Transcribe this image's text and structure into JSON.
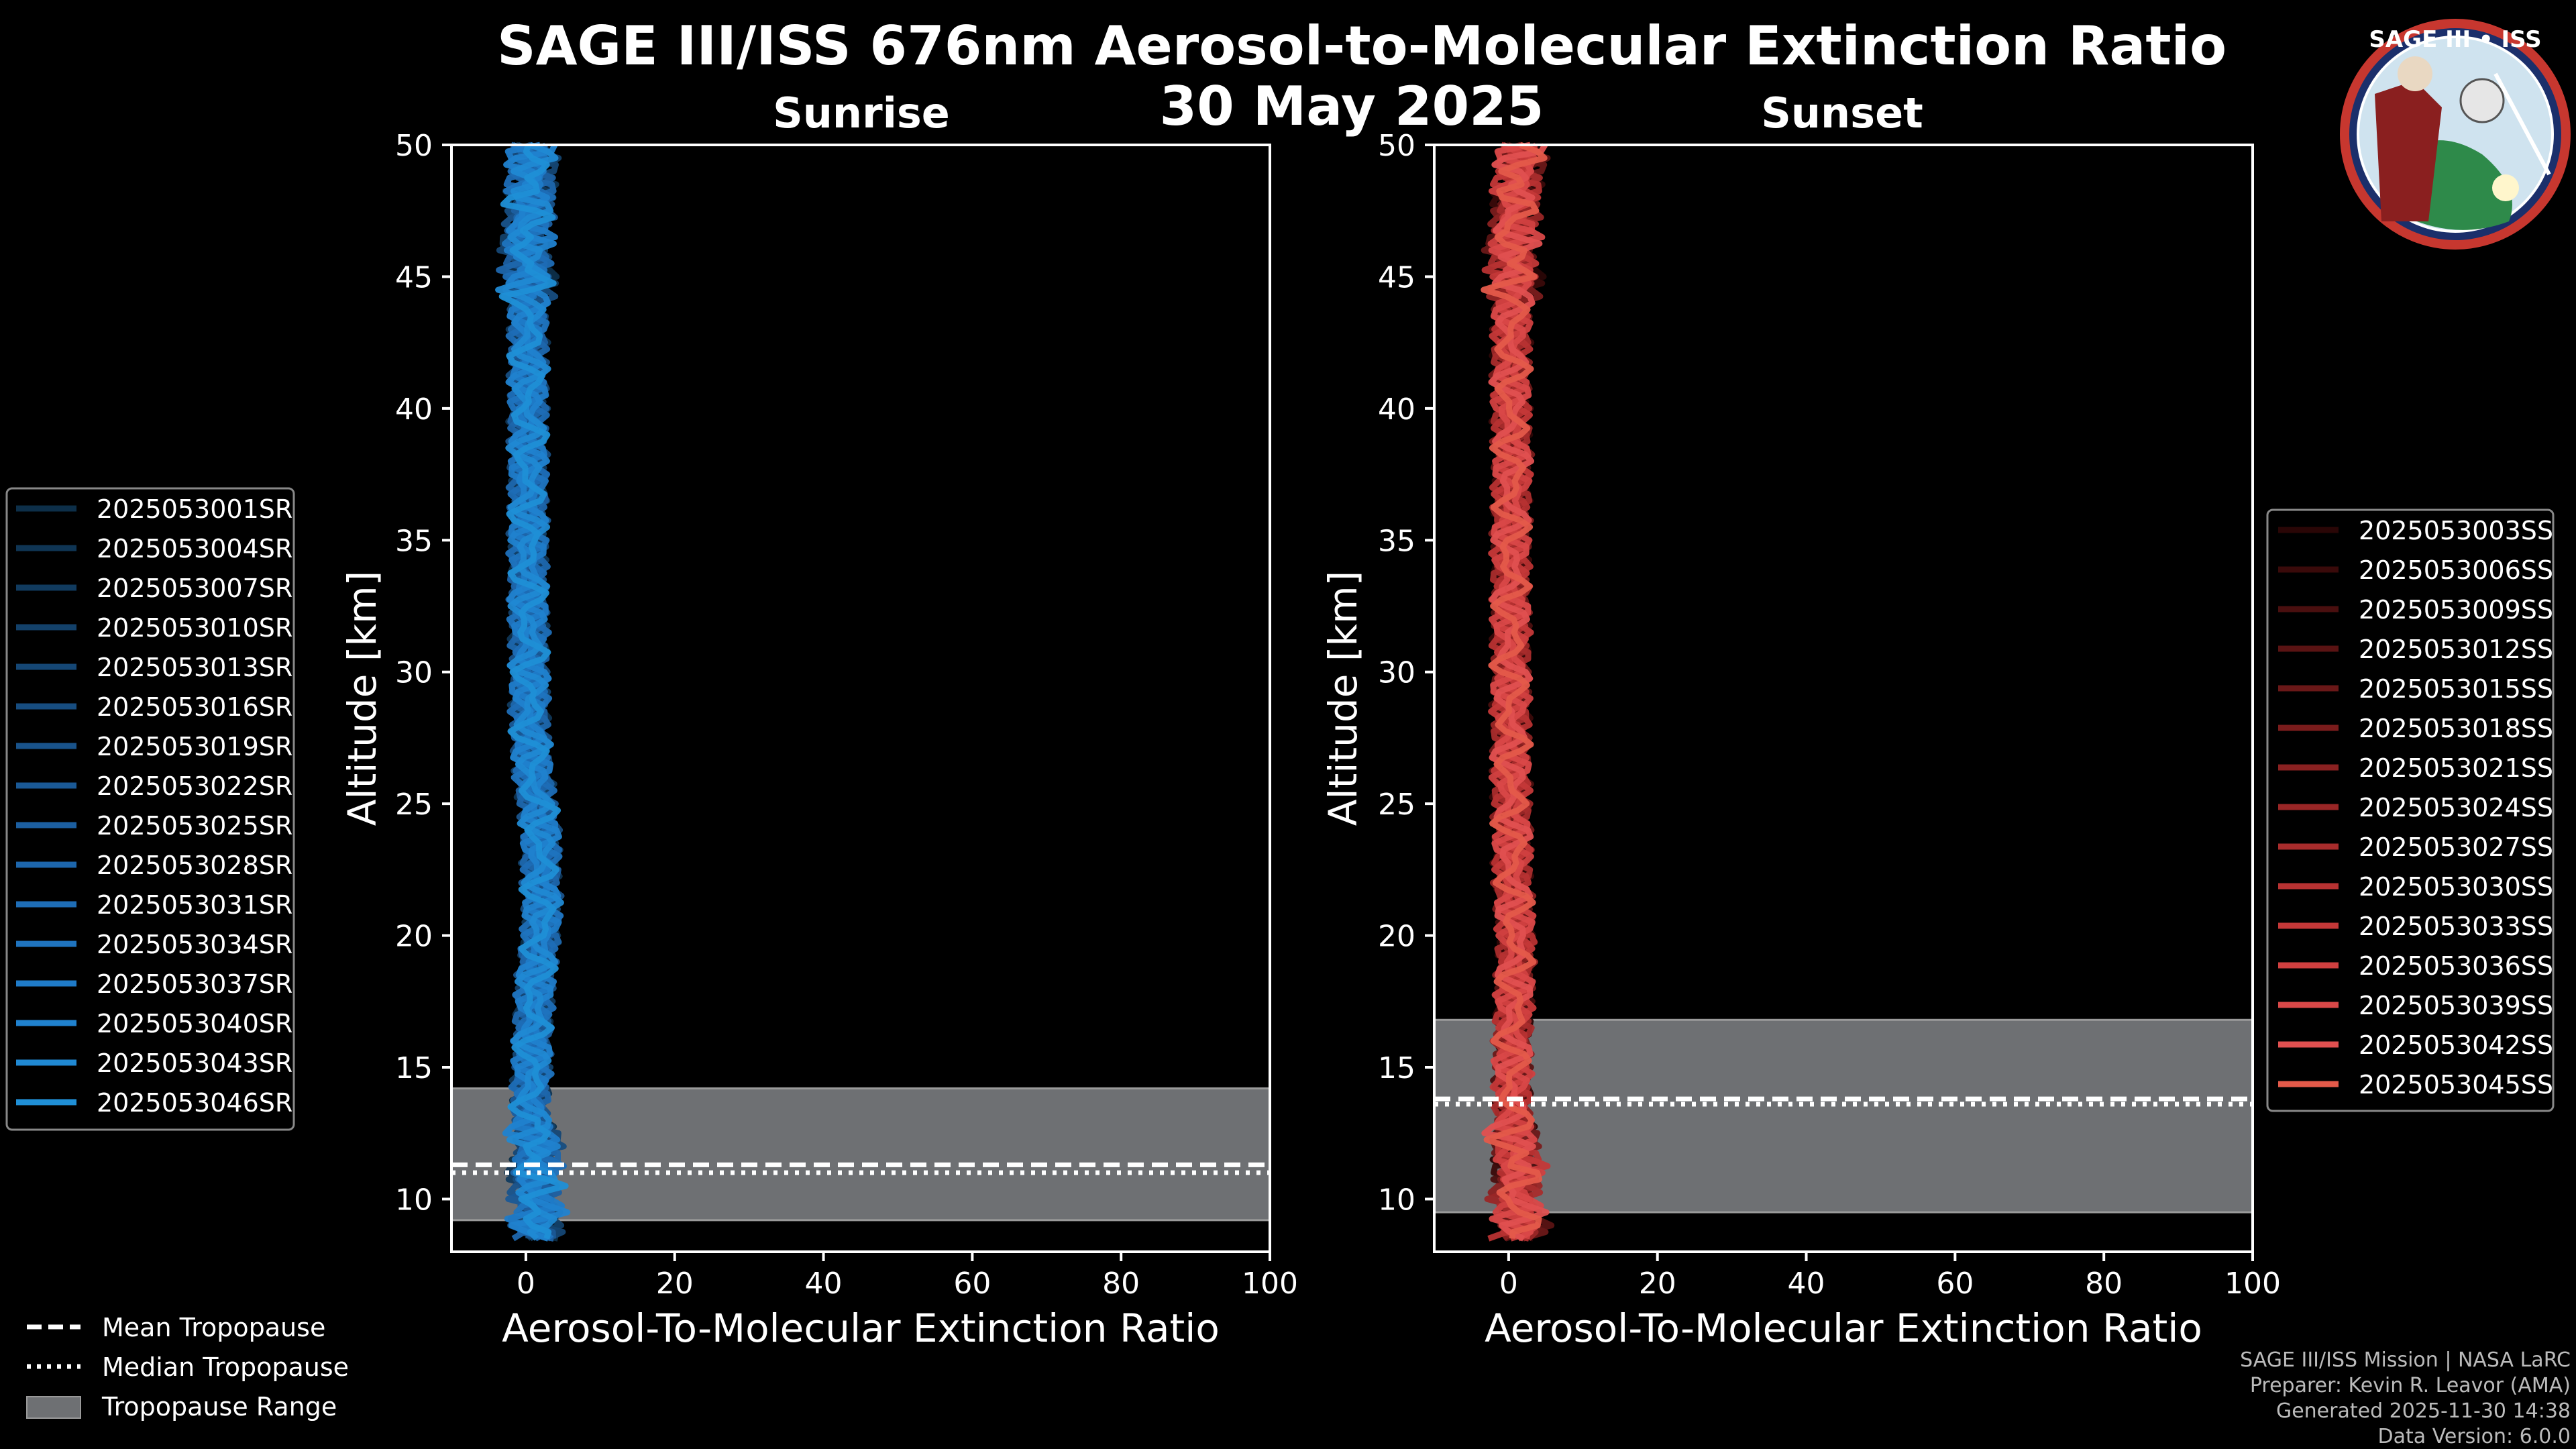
{
  "chart_data": {
    "title": "SAGE III/ISS 676nm Aerosol-to-Molecular Extinction Ratio",
    "subtitle": "30 May 2025",
    "type": "line",
    "xlabel": "Aerosol-To-Molecular Extinction Ratio",
    "ylabel": "Altitude [km]",
    "xlim": [
      -10,
      100
    ],
    "ylim": [
      8,
      50
    ],
    "xticks": [
      "0",
      "20",
      "40",
      "60",
      "80",
      "100"
    ],
    "yticks": [
      "10",
      "15",
      "20",
      "25",
      "30",
      "35",
      "40",
      "45",
      "50"
    ],
    "panels": [
      {
        "title": "Sunrise",
        "color": "#1f8fd6",
        "tropopause": {
          "mean": 11.3,
          "median": 11.0,
          "min": 9.2,
          "max": 14.2
        },
        "series_names": [
          "2025053001SR",
          "2025053004SR",
          "2025053007SR",
          "2025053010SR",
          "2025053013SR",
          "2025053016SR",
          "2025053019SR",
          "2025053022SR",
          "2025053025SR",
          "2025053028SR",
          "2025053031SR",
          "2025053034SR",
          "2025053037SR",
          "2025053040SR",
          "2025053043SR",
          "2025053046SR"
        ],
        "legend_colors": [
          "#0d2f49",
          "#0f3554",
          "#113b5f",
          "#13416a",
          "#154775",
          "#174d80",
          "#19538b",
          "#1a5996",
          "#1c5fa1",
          "#1d66ac",
          "#1e6db6",
          "#1f74bf",
          "#1f7bc8",
          "#2082cf",
          "#2089d3",
          "#1f8fd6"
        ],
        "profile_altitude": [
          8.5,
          9.0,
          9.5,
          10.0,
          11.0,
          12.0,
          13.0,
          15.0,
          17.0,
          19.0,
          20.0,
          21.0,
          22.0,
          23.0,
          24.0,
          26.0,
          28.0,
          30.0,
          33.0,
          36.0,
          38.0,
          40.0,
          42.0,
          44.0,
          45.5,
          46.5,
          48.0,
          50.0
        ],
        "profile_mean": [
          2.0,
          1.0,
          2.0,
          1.5,
          1.0,
          1.5,
          0.5,
          0.8,
          1.0,
          1.5,
          2.0,
          2.2,
          2.0,
          2.0,
          2.0,
          1.0,
          0.5,
          0.5,
          0.3,
          0.3,
          0.3,
          0.3,
          0.3,
          0.3,
          0.5,
          0.0,
          0.5,
          1.0
        ]
      },
      {
        "title": "Sunset",
        "color": "#e45a4a",
        "tropopause": {
          "mean": 13.8,
          "median": 13.6,
          "min": 9.5,
          "max": 16.8
        },
        "series_names": [
          "2025053003SS",
          "2025053006SS",
          "2025053009SS",
          "2025053012SS",
          "2025053015SS",
          "2025053018SS",
          "2025053021SS",
          "2025053024SS",
          "2025053027SS",
          "2025053030SS",
          "2025053033SS",
          "2025053036SS",
          "2025053039SS",
          "2025053042SS",
          "2025053045SS"
        ],
        "legend_colors": [
          "#2a0606",
          "#3a0a0a",
          "#4a0f0f",
          "#5a1313",
          "#6a1818",
          "#7a1c1c",
          "#8a2121",
          "#992626",
          "#a82c2c",
          "#b73232",
          "#c43838",
          "#d04040",
          "#d94848",
          "#e05050",
          "#e45a4a"
        ],
        "profile_altitude": [
          8.5,
          9.0,
          10.0,
          11.0,
          12.0,
          14.0,
          16.0,
          18.0,
          20.0,
          22.0,
          24.0,
          26.0,
          28.0,
          30.0,
          33.0,
          36.0,
          38.0,
          40.0,
          42.0,
          44.0,
          45.0,
          46.0,
          48.0,
          50.0
        ],
        "profile_mean": [
          1.0,
          2.0,
          1.0,
          1.5,
          0.5,
          0.5,
          0.5,
          0.8,
          1.0,
          0.5,
          0.5,
          0.3,
          0.3,
          0.3,
          0.3,
          0.3,
          0.5,
          0.3,
          0.3,
          0.5,
          1.0,
          0.5,
          0.8,
          2.0
        ]
      }
    ],
    "legend_tropopause": [
      "Mean Tropopause",
      "Median Tropopause",
      "Tropopause Range"
    ]
  },
  "footer": {
    "line1": "SAGE III/ISS Mission | NASA LaRC",
    "line2": "Preparer: Kevin R. Leavor (AMA)",
    "line3": "Generated 2025-11-30 14:38",
    "line4": "Data Version: 6.0.0"
  },
  "logo": {
    "text": "SAGE III • ISS"
  }
}
